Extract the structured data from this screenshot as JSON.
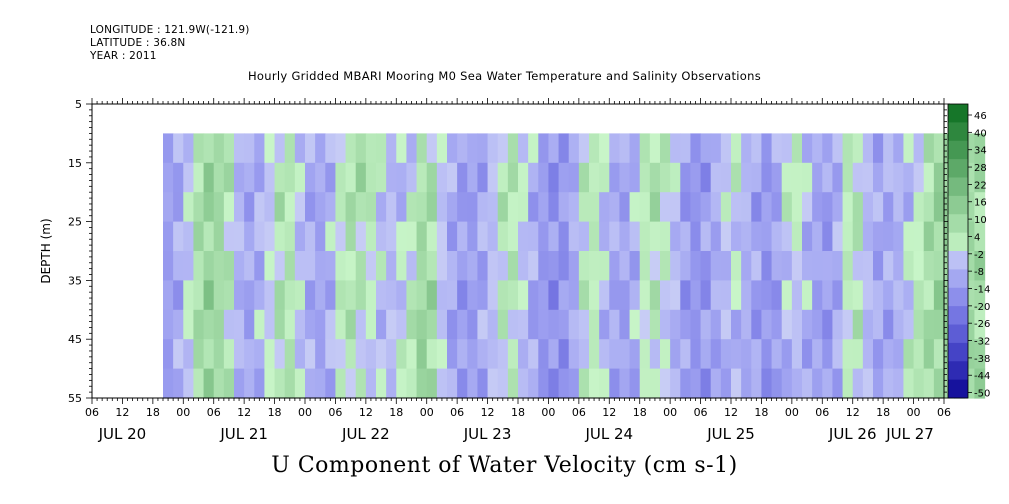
{
  "header": {
    "longitude": "LONGITUDE : 121.9W(-121.9)",
    "latitude": "LATITUDE : 36.8N",
    "year": "YEAR : 2011"
  },
  "chart_data": {
    "type": "heatmap",
    "title": "Hourly Gridded MBARI Mooring M0 Sea Water Temperature and Salinity Observations",
    "xlabel": "U Component of Water Velocity (cm s-1)",
    "ylabel": "DEPTH (m)",
    "ylim": [
      5,
      55
    ],
    "y_inverted": true,
    "y_ticks": [
      5,
      15,
      25,
      35,
      45,
      55
    ],
    "data_depth_range": [
      10,
      55
    ],
    "x_axis": {
      "hour_tick_labels": [
        "06",
        "12",
        "18",
        "00",
        "06",
        "12",
        "18",
        "00",
        "06",
        "12",
        "18",
        "00",
        "06",
        "12",
        "18",
        "00",
        "06",
        "12",
        "18",
        "00",
        "06",
        "12",
        "18",
        "00",
        "06",
        "12",
        "18",
        "00",
        "06"
      ],
      "day_labels": [
        "JUL 20",
        "JUL 21",
        "JUL 22",
        "JUL 23",
        "JUL 24",
        "JUL 25",
        "JUL 26",
        "JUL 27"
      ]
    },
    "colorbar": {
      "range": [
        -50,
        50
      ],
      "tick_labels": [
        "46",
        "40",
        "34",
        "28",
        "22",
        "16",
        "10",
        "4",
        "-2",
        "-8",
        "-14",
        "-20",
        "-26",
        "-32",
        "-38",
        "-44",
        "-50"
      ]
    },
    "data_columns_hours": [
      14,
      176
    ],
    "series": [
      {
        "time_hours": [
          14,
          18,
          22,
          26,
          30,
          34,
          38,
          42,
          46,
          50,
          54,
          58,
          62,
          66,
          70,
          74,
          78,
          82,
          86,
          90,
          94,
          98,
          102,
          106,
          110,
          114,
          118,
          122,
          126,
          130,
          134,
          138,
          142,
          146,
          150,
          154,
          158,
          162,
          166,
          170,
          174
        ],
        "u_surface": [
          -12,
          -8,
          12,
          10,
          -10,
          -6,
          8,
          -8,
          -10,
          6,
          12,
          -4,
          -8,
          10,
          -6,
          -12,
          -8,
          10,
          -4,
          -14,
          -12,
          8,
          -6,
          -10,
          10,
          4,
          -16,
          -10,
          6,
          -8,
          -14,
          10,
          -8,
          -12,
          10,
          -10,
          -6,
          -8,
          12,
          14,
          8
        ],
        "u_bottom": [
          -14,
          -6,
          14,
          8,
          -12,
          -4,
          10,
          -6,
          -12,
          8,
          -4,
          -6,
          4,
          18,
          -10,
          -14,
          -6,
          4,
          -8,
          -16,
          -14,
          6,
          -10,
          -12,
          4,
          -6,
          -14,
          -12,
          -8,
          -10,
          -16,
          -6,
          -10,
          -14,
          6,
          -8,
          -12,
          8,
          10,
          14,
          10
        ]
      }
    ]
  }
}
